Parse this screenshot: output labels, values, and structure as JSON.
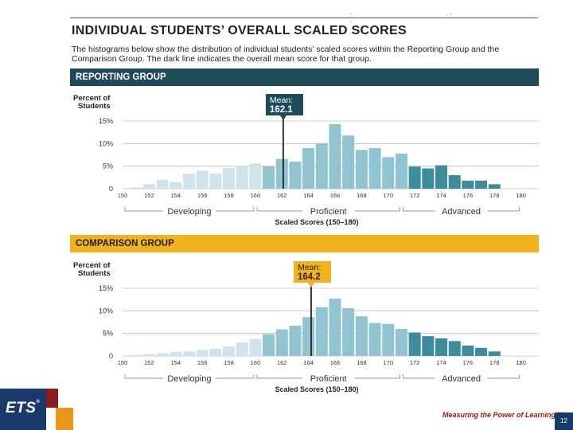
{
  "header": {
    "top_marks": ". . .",
    "title": "INDIVIDUAL STUDENTS’ OVERALL SCALED SCORES",
    "intro": "The histograms below show the distribution of individual students’ scaled scores within the Reporting Group and the Comparison Group. The dark line indicates the overall mean score for that group."
  },
  "colors": {
    "reporting_band": "#1f4a5a",
    "comparison_band": "#f2b21c",
    "developing": "#cfe3ea",
    "proficient": "#8fc4d0",
    "advanced": "#3c8d9c",
    "mean_reporting_box": "#1f4a5a",
    "mean_comparison_box": "#f2b21c"
  },
  "chart_data": [
    {
      "type": "bar",
      "section": "REPORTING GROUP",
      "ylabel": "Percent of Students",
      "xlabel": "Scaled Scores (150–180)",
      "ylim": [
        0,
        15
      ],
      "yticks": [
        "0",
        "5%",
        "10%",
        "15%"
      ],
      "ytick_values": [
        0,
        5,
        10,
        15
      ],
      "xticks": [
        "150",
        "152",
        "154",
        "156",
        "158",
        "160",
        "162",
        "164",
        "166",
        "168",
        "170",
        "172",
        "174",
        "176",
        "178",
        "180"
      ],
      "x": [
        151,
        152,
        153,
        154,
        155,
        156,
        157,
        158,
        159,
        160,
        161,
        162,
        163,
        164,
        165,
        166,
        167,
        168,
        169,
        170,
        171,
        172,
        173,
        174,
        175,
        176,
        177,
        178
      ],
      "values": [
        0.3,
        1.0,
        2.0,
        1.5,
        3.3,
        4.0,
        3.3,
        4.6,
        5.0,
        5.6,
        5.0,
        6.6,
        6.0,
        9.0,
        10.0,
        14.3,
        11.8,
        8.6,
        9.0,
        7.0,
        7.8,
        4.9,
        4.5,
        5.2,
        3.0,
        1.8,
        1.8,
        1.0
      ],
      "mean": 162.1,
      "mean_label": "Mean:",
      "mean_value": "162.1",
      "levels": [
        {
          "name": "Developing",
          "from": 150,
          "to": 160
        },
        {
          "name": "Proficient",
          "from": 160,
          "to": 171
        },
        {
          "name": "Advanced",
          "from": 171,
          "to": 180
        }
      ]
    },
    {
      "type": "bar",
      "section": "COMPARISON GROUP",
      "ylabel": "Percent of Students",
      "xlabel": "Scaled Scores (150–180)",
      "ylim": [
        0,
        15
      ],
      "yticks": [
        "0",
        "5%",
        "10%",
        "15%"
      ],
      "ytick_values": [
        0,
        5,
        10,
        15
      ],
      "xticks": [
        "150",
        "152",
        "154",
        "156",
        "158",
        "160",
        "162",
        "164",
        "166",
        "168",
        "170",
        "172",
        "174",
        "176",
        "178",
        "180"
      ],
      "x": [
        151,
        152,
        153,
        154,
        155,
        156,
        157,
        158,
        159,
        160,
        161,
        162,
        163,
        164,
        165,
        166,
        167,
        168,
        169,
        170,
        171,
        172,
        173,
        174,
        175,
        176,
        177,
        178
      ],
      "values": [
        0.2,
        0.4,
        0.6,
        0.9,
        1.0,
        1.3,
        1.6,
        2.1,
        3.0,
        3.8,
        4.8,
        5.9,
        6.7,
        8.6,
        10.8,
        12.7,
        10.6,
        8.8,
        7.3,
        7.1,
        6.0,
        5.2,
        4.4,
        3.9,
        3.3,
        2.3,
        1.8,
        1.0
      ],
      "mean": 164.2,
      "mean_label": "Mean:",
      "mean_value": "164.2",
      "levels": [
        {
          "name": "Developing",
          "from": 150,
          "to": 160
        },
        {
          "name": "Proficient",
          "from": 160,
          "to": 171
        },
        {
          "name": "Advanced",
          "from": 171,
          "to": 180
        }
      ]
    }
  ],
  "footer": {
    "logo_text": "ETS",
    "logo_mark": "®",
    "tagline": "Measuring the Power of Learning.™",
    "page_number": "12"
  }
}
